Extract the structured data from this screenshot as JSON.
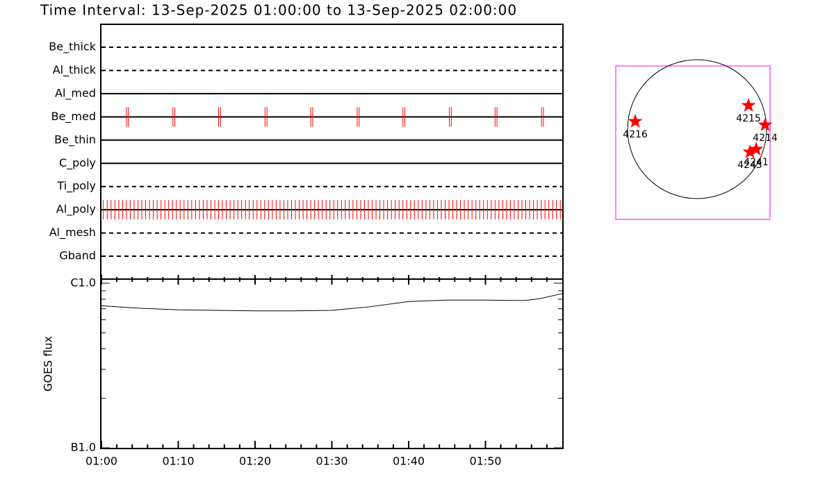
{
  "chart_data": [
    {
      "type": "timeline",
      "title": "Time Interval: 13-Sep-2025 01:00:00 to 13-Sep-2025 02:00:00",
      "xlim": [
        0,
        60
      ],
      "color": "#ff0000",
      "rows": [
        {
          "name": "Be_thick",
          "style": "dashed",
          "events": []
        },
        {
          "name": "Al_thick",
          "style": "dashed",
          "events": []
        },
        {
          "name": "Al_med",
          "style": "solid",
          "events": []
        },
        {
          "name": "Be_med",
          "style": "solid",
          "events": [
            3.25,
            3.5,
            9.3,
            9.55,
            15.25,
            15.5,
            21.3,
            21.55,
            27.25,
            27.5,
            33.3,
            33.55,
            39.25,
            39.5,
            45.3,
            45.55,
            51.25,
            51.5,
            57.3,
            57.55
          ]
        },
        {
          "name": "Be_thin",
          "style": "solid",
          "events": []
        },
        {
          "name": "C_poly",
          "style": "solid",
          "events": []
        },
        {
          "name": "Ti_poly",
          "style": "dashed",
          "events": []
        },
        {
          "name": "Al_poly",
          "style": "solid",
          "events": [
            0.25,
            0.75,
            1.25,
            1.75,
            2.25,
            2.75,
            3.25,
            3.75,
            4.25,
            4.75,
            5.25,
            5.75,
            6.25,
            6.75,
            7.25,
            7.75,
            8.25,
            8.75,
            9.25,
            9.75,
            10.25,
            10.75,
            11.25,
            11.75,
            12.25,
            12.75,
            13.25,
            13.75,
            14.25,
            14.75,
            15.25,
            15.75,
            16.25,
            16.75,
            17.25,
            17.75,
            18.25,
            18.75,
            19.25,
            19.75,
            20.25,
            20.75,
            21.25,
            21.75,
            22.25,
            22.75,
            23.25,
            23.75,
            24.25,
            24.75,
            25.25,
            25.75,
            26.25,
            26.75,
            27.25,
            27.75,
            28.25,
            28.75,
            29.25,
            29.75,
            30.25,
            30.75,
            31.25,
            31.75,
            32.25,
            32.75,
            33.25,
            33.75,
            34.25,
            34.75,
            35.25,
            35.75,
            36.25,
            36.75,
            37.25,
            37.75,
            38.25,
            38.75,
            39.25,
            39.75,
            40.25,
            40.75,
            41.25,
            41.75,
            42.25,
            42.75,
            43.25,
            43.75,
            44.25,
            44.75,
            45.25,
            45.75,
            46.25,
            46.75,
            47.25,
            47.75,
            48.25,
            48.75,
            49.25,
            49.75,
            50.25,
            50.75,
            51.25,
            51.75,
            52.25,
            52.75,
            53.25,
            53.75,
            54.25,
            54.75,
            55.25,
            55.75,
            56.25,
            56.75,
            57.25,
            57.75,
            58.25,
            58.75,
            59.25,
            59.75
          ]
        },
        {
          "name": "Al_mesh",
          "style": "dashed",
          "events": []
        },
        {
          "name": "Gband",
          "style": "dashed",
          "events": []
        }
      ]
    },
    {
      "type": "line",
      "ylabel": "GOES flux",
      "log": true,
      "color": "#000000",
      "x": [
        0,
        5,
        10,
        15,
        20,
        25,
        30,
        35,
        40,
        45,
        50,
        55,
        57,
        60
      ],
      "values": [
        7.3e-07,
        7.05e-07,
        6.9e-07,
        6.85e-07,
        6.8e-07,
        6.8e-07,
        6.85e-07,
        7.2e-07,
        7.75e-07,
        7.9e-07,
        7.9e-07,
        7.85e-07,
        8.05e-07,
        8.65e-07
      ],
      "xlim": [
        0,
        60
      ],
      "xticks": [
        {
          "value": 0,
          "label": "01:00"
        },
        {
          "value": 10,
          "label": "01:10"
        },
        {
          "value": 20,
          "label": "01:20"
        },
        {
          "value": 30,
          "label": "01:30"
        },
        {
          "value": 40,
          "label": "01:40"
        },
        {
          "value": 50,
          "label": "01:50"
        }
      ],
      "xminor_ticks": [
        2,
        4,
        6,
        8,
        12,
        14,
        16,
        18,
        22,
        24,
        26,
        28,
        32,
        34,
        36,
        38,
        42,
        44,
        46,
        48,
        52,
        54,
        56,
        58
      ],
      "ylim": [
        1e-07,
        1e-06
      ],
      "yticks": [
        {
          "value": 1e-07,
          "label": "B1.0"
        },
        {
          "value": 1e-06,
          "label": "C1.0"
        }
      ],
      "yminor_ticks": [
        2e-07,
        3e-07,
        4e-07,
        5e-07,
        6e-07,
        7e-07,
        8e-07,
        9e-07
      ]
    },
    {
      "type": "map",
      "color": "#ff0000",
      "regions": [
        {
          "label": "4216",
          "x": -0.89,
          "y": 0.11
        },
        {
          "label": "4215",
          "x": 0.74,
          "y": 0.34
        },
        {
          "label": "4214",
          "x": 0.98,
          "y": 0.06
        },
        {
          "label": "4243",
          "x": 0.76,
          "y": -0.33
        },
        {
          "label": "4241",
          "x": 0.85,
          "y": -0.29
        }
      ]
    }
  ]
}
